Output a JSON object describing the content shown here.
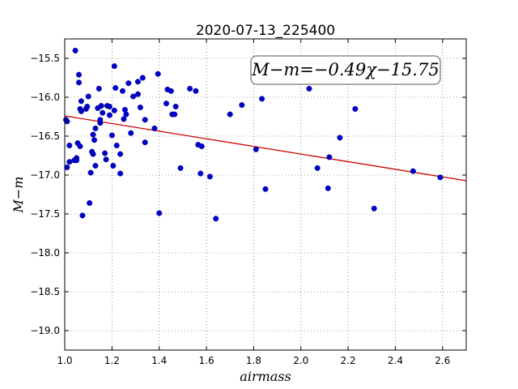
{
  "chart_data": {
    "type": "scatter",
    "title": "2020-07-13_225400",
    "xlabel": "airmass",
    "ylabel": "M−m",
    "xlim": [
      1.0,
      2.7
    ],
    "ylim": [
      -19.25,
      -15.25
    ],
    "y_inverted": true,
    "grid": true,
    "xticks": [
      1.0,
      1.2,
      1.4,
      1.6,
      1.8,
      2.0,
      2.2,
      2.4,
      2.6
    ],
    "xtick_labels": [
      "1.0",
      "1.2",
      "1.4",
      "1.6",
      "1.8",
      "2.0",
      "2.2",
      "2.4",
      "2.6"
    ],
    "yticks": [
      -15.5,
      -16.0,
      -16.5,
      -17.0,
      -17.5,
      -18.0,
      -18.5,
      -19.0
    ],
    "ytick_labels": [
      "−15.5",
      "−16.0",
      "−16.5",
      "−17.0",
      "−17.5",
      "−18.0",
      "−18.5",
      "−19.0"
    ],
    "annotation": "M−m=−0.49χ−15.75",
    "colors": {
      "points": "#0000cc",
      "fit": "#cc0000"
    },
    "fit": {
      "slope": -0.49,
      "intercept": -15.75
    },
    "points": [
      [
        1.005,
        -16.29
      ],
      [
        1.01,
        -16.31
      ],
      [
        1.01,
        -16.9
      ],
      [
        1.02,
        -16.62
      ],
      [
        1.02,
        -16.83
      ],
      [
        1.04,
        -16.81
      ],
      [
        1.045,
        -15.4
      ],
      [
        1.05,
        -16.78
      ],
      [
        1.05,
        -16.81
      ],
      [
        1.055,
        -16.59
      ],
      [
        1.06,
        -15.71
      ],
      [
        1.06,
        -15.81
      ],
      [
        1.065,
        -16.63
      ],
      [
        1.065,
        -16.15
      ],
      [
        1.07,
        -16.05
      ],
      [
        1.07,
        -16.18
      ],
      [
        1.075,
        -17.52
      ],
      [
        1.09,
        -16.15
      ],
      [
        1.095,
        -16.12
      ],
      [
        1.1,
        -15.99
      ],
      [
        1.105,
        -17.36
      ],
      [
        1.11,
        -16.97
      ],
      [
        1.115,
        -16.7
      ],
      [
        1.12,
        -16.73
      ],
      [
        1.12,
        -16.48
      ],
      [
        1.125,
        -16.55
      ],
      [
        1.13,
        -16.4
      ],
      [
        1.13,
        -16.88
      ],
      [
        1.14,
        -16.14
      ],
      [
        1.145,
        -15.89
      ],
      [
        1.15,
        -16.29
      ],
      [
        1.15,
        -16.33
      ],
      [
        1.155,
        -16.11
      ],
      [
        1.16,
        -16.2
      ],
      [
        1.17,
        -16.72
      ],
      [
        1.175,
        -16.8
      ],
      [
        1.18,
        -16.11
      ],
      [
        1.19,
        -16.12
      ],
      [
        1.19,
        -16.23
      ],
      [
        1.2,
        -16.49
      ],
      [
        1.205,
        -16.88
      ],
      [
        1.21,
        -16.17
      ],
      [
        1.21,
        -15.6
      ],
      [
        1.215,
        -15.88
      ],
      [
        1.22,
        -16.62
      ],
      [
        1.235,
        -16.73
      ],
      [
        1.235,
        -16.98
      ],
      [
        1.245,
        -15.92
      ],
      [
        1.25,
        -16.28
      ],
      [
        1.255,
        -16.16
      ],
      [
        1.26,
        -16.22
      ],
      [
        1.27,
        -15.82
      ],
      [
        1.28,
        -16.46
      ],
      [
        1.29,
        -15.99
      ],
      [
        1.31,
        -15.96
      ],
      [
        1.31,
        -15.8
      ],
      [
        1.32,
        -16.13
      ],
      [
        1.33,
        -15.75
      ],
      [
        1.34,
        -16.58
      ],
      [
        1.34,
        -16.29
      ],
      [
        1.38,
        -16.4
      ],
      [
        1.395,
        -15.7
      ],
      [
        1.4,
        -17.49
      ],
      [
        1.43,
        -16.08
      ],
      [
        1.435,
        -15.9
      ],
      [
        1.45,
        -15.92
      ],
      [
        1.455,
        -16.22
      ],
      [
        1.465,
        -16.22
      ],
      [
        1.47,
        -16.12
      ],
      [
        1.49,
        -16.91
      ],
      [
        1.53,
        -15.89
      ],
      [
        1.555,
        -15.92
      ],
      [
        1.565,
        -16.61
      ],
      [
        1.575,
        -16.98
      ],
      [
        1.58,
        -16.63
      ],
      [
        1.615,
        -17.02
      ],
      [
        1.64,
        -17.56
      ],
      [
        1.7,
        -16.22
      ],
      [
        1.75,
        -16.1
      ],
      [
        1.81,
        -16.67
      ],
      [
        1.835,
        -16.02
      ],
      [
        1.85,
        -17.18
      ],
      [
        2.035,
        -15.89
      ],
      [
        2.07,
        -16.91
      ],
      [
        2.115,
        -17.17
      ],
      [
        2.12,
        -16.77
      ],
      [
        2.165,
        -16.52
      ],
      [
        2.23,
        -16.15
      ],
      [
        2.31,
        -17.43
      ],
      [
        2.475,
        -16.95
      ],
      [
        2.59,
        -17.03
      ]
    ]
  }
}
